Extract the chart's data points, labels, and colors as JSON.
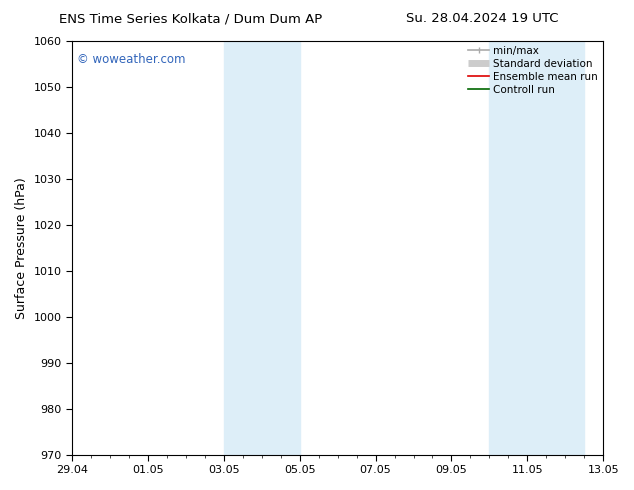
{
  "title_left": "ENS Time Series Kolkata / Dum Dum AP",
  "title_right": "Su. 28.04.2024 19 UTC",
  "ylabel": "Surface Pressure (hPa)",
  "ylim": [
    970,
    1060
  ],
  "yticks": [
    970,
    980,
    990,
    1000,
    1010,
    1020,
    1030,
    1040,
    1050,
    1060
  ],
  "xtick_labels": [
    "29.04",
    "01.05",
    "03.05",
    "05.05",
    "07.05",
    "09.05",
    "11.05",
    "13.05"
  ],
  "xtick_positions": [
    0,
    2,
    4,
    6,
    8,
    10,
    12,
    14
  ],
  "xlim": [
    0,
    14
  ],
  "shaded_bands": [
    {
      "x_start": 4.0,
      "x_end": 6.0
    },
    {
      "x_start": 11.0,
      "x_end": 13.5
    }
  ],
  "shaded_color": "#ddeef8",
  "watermark_text": "© woweather.com",
  "watermark_color": "#3366bb",
  "legend_entries": [
    {
      "label": "min/max",
      "color": "#aaaaaa",
      "lw": 1.2
    },
    {
      "label": "Standard deviation",
      "color": "#cccccc",
      "lw": 5
    },
    {
      "label": "Ensemble mean run",
      "color": "#dd0000",
      "lw": 1.2
    },
    {
      "label": "Controll run",
      "color": "#006600",
      "lw": 1.2
    }
  ],
  "bg_color": "#ffffff",
  "plot_bg_color": "#ffffff",
  "title_fontsize": 9.5,
  "tick_fontsize": 8,
  "ylabel_fontsize": 9,
  "legend_fontsize": 7.5,
  "watermark_fontsize": 8.5
}
